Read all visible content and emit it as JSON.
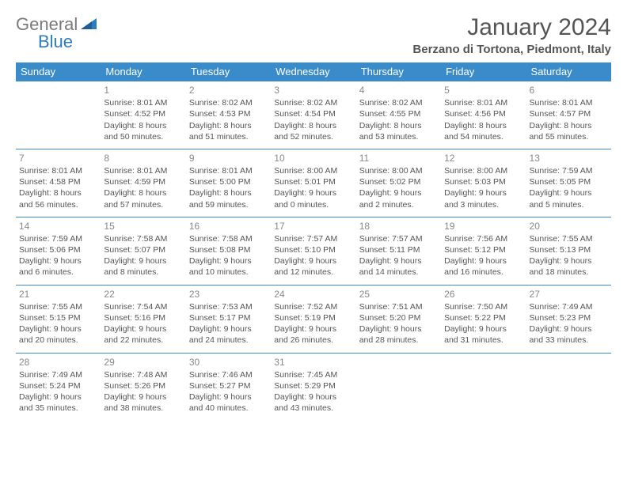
{
  "logo": {
    "text1": "General",
    "text2": "Blue"
  },
  "title": "January 2024",
  "location": "Berzano di Tortona, Piedmont, Italy",
  "colors": {
    "header_bg": "#3a8bc9",
    "header_fg": "#ffffff",
    "border": "#3a8bc9",
    "text": "#555555",
    "logo_gray": "#7a7a7a",
    "logo_blue": "#2e7cc0"
  },
  "day_headers": [
    "Sunday",
    "Monday",
    "Tuesday",
    "Wednesday",
    "Thursday",
    "Friday",
    "Saturday"
  ],
  "weeks": [
    [
      {
        "n": "",
        "sr": "",
        "ss": "",
        "d1": "",
        "d2": ""
      },
      {
        "n": "1",
        "sr": "Sunrise: 8:01 AM",
        "ss": "Sunset: 4:52 PM",
        "d1": "Daylight: 8 hours",
        "d2": "and 50 minutes."
      },
      {
        "n": "2",
        "sr": "Sunrise: 8:02 AM",
        "ss": "Sunset: 4:53 PM",
        "d1": "Daylight: 8 hours",
        "d2": "and 51 minutes."
      },
      {
        "n": "3",
        "sr": "Sunrise: 8:02 AM",
        "ss": "Sunset: 4:54 PM",
        "d1": "Daylight: 8 hours",
        "d2": "and 52 minutes."
      },
      {
        "n": "4",
        "sr": "Sunrise: 8:02 AM",
        "ss": "Sunset: 4:55 PM",
        "d1": "Daylight: 8 hours",
        "d2": "and 53 minutes."
      },
      {
        "n": "5",
        "sr": "Sunrise: 8:01 AM",
        "ss": "Sunset: 4:56 PM",
        "d1": "Daylight: 8 hours",
        "d2": "and 54 minutes."
      },
      {
        "n": "6",
        "sr": "Sunrise: 8:01 AM",
        "ss": "Sunset: 4:57 PM",
        "d1": "Daylight: 8 hours",
        "d2": "and 55 minutes."
      }
    ],
    [
      {
        "n": "7",
        "sr": "Sunrise: 8:01 AM",
        "ss": "Sunset: 4:58 PM",
        "d1": "Daylight: 8 hours",
        "d2": "and 56 minutes."
      },
      {
        "n": "8",
        "sr": "Sunrise: 8:01 AM",
        "ss": "Sunset: 4:59 PM",
        "d1": "Daylight: 8 hours",
        "d2": "and 57 minutes."
      },
      {
        "n": "9",
        "sr": "Sunrise: 8:01 AM",
        "ss": "Sunset: 5:00 PM",
        "d1": "Daylight: 8 hours",
        "d2": "and 59 minutes."
      },
      {
        "n": "10",
        "sr": "Sunrise: 8:00 AM",
        "ss": "Sunset: 5:01 PM",
        "d1": "Daylight: 9 hours",
        "d2": "and 0 minutes."
      },
      {
        "n": "11",
        "sr": "Sunrise: 8:00 AM",
        "ss": "Sunset: 5:02 PM",
        "d1": "Daylight: 9 hours",
        "d2": "and 2 minutes."
      },
      {
        "n": "12",
        "sr": "Sunrise: 8:00 AM",
        "ss": "Sunset: 5:03 PM",
        "d1": "Daylight: 9 hours",
        "d2": "and 3 minutes."
      },
      {
        "n": "13",
        "sr": "Sunrise: 7:59 AM",
        "ss": "Sunset: 5:05 PM",
        "d1": "Daylight: 9 hours",
        "d2": "and 5 minutes."
      }
    ],
    [
      {
        "n": "14",
        "sr": "Sunrise: 7:59 AM",
        "ss": "Sunset: 5:06 PM",
        "d1": "Daylight: 9 hours",
        "d2": "and 6 minutes."
      },
      {
        "n": "15",
        "sr": "Sunrise: 7:58 AM",
        "ss": "Sunset: 5:07 PM",
        "d1": "Daylight: 9 hours",
        "d2": "and 8 minutes."
      },
      {
        "n": "16",
        "sr": "Sunrise: 7:58 AM",
        "ss": "Sunset: 5:08 PM",
        "d1": "Daylight: 9 hours",
        "d2": "and 10 minutes."
      },
      {
        "n": "17",
        "sr": "Sunrise: 7:57 AM",
        "ss": "Sunset: 5:10 PM",
        "d1": "Daylight: 9 hours",
        "d2": "and 12 minutes."
      },
      {
        "n": "18",
        "sr": "Sunrise: 7:57 AM",
        "ss": "Sunset: 5:11 PM",
        "d1": "Daylight: 9 hours",
        "d2": "and 14 minutes."
      },
      {
        "n": "19",
        "sr": "Sunrise: 7:56 AM",
        "ss": "Sunset: 5:12 PM",
        "d1": "Daylight: 9 hours",
        "d2": "and 16 minutes."
      },
      {
        "n": "20",
        "sr": "Sunrise: 7:55 AM",
        "ss": "Sunset: 5:13 PM",
        "d1": "Daylight: 9 hours",
        "d2": "and 18 minutes."
      }
    ],
    [
      {
        "n": "21",
        "sr": "Sunrise: 7:55 AM",
        "ss": "Sunset: 5:15 PM",
        "d1": "Daylight: 9 hours",
        "d2": "and 20 minutes."
      },
      {
        "n": "22",
        "sr": "Sunrise: 7:54 AM",
        "ss": "Sunset: 5:16 PM",
        "d1": "Daylight: 9 hours",
        "d2": "and 22 minutes."
      },
      {
        "n": "23",
        "sr": "Sunrise: 7:53 AM",
        "ss": "Sunset: 5:17 PM",
        "d1": "Daylight: 9 hours",
        "d2": "and 24 minutes."
      },
      {
        "n": "24",
        "sr": "Sunrise: 7:52 AM",
        "ss": "Sunset: 5:19 PM",
        "d1": "Daylight: 9 hours",
        "d2": "and 26 minutes."
      },
      {
        "n": "25",
        "sr": "Sunrise: 7:51 AM",
        "ss": "Sunset: 5:20 PM",
        "d1": "Daylight: 9 hours",
        "d2": "and 28 minutes."
      },
      {
        "n": "26",
        "sr": "Sunrise: 7:50 AM",
        "ss": "Sunset: 5:22 PM",
        "d1": "Daylight: 9 hours",
        "d2": "and 31 minutes."
      },
      {
        "n": "27",
        "sr": "Sunrise: 7:49 AM",
        "ss": "Sunset: 5:23 PM",
        "d1": "Daylight: 9 hours",
        "d2": "and 33 minutes."
      }
    ],
    [
      {
        "n": "28",
        "sr": "Sunrise: 7:49 AM",
        "ss": "Sunset: 5:24 PM",
        "d1": "Daylight: 9 hours",
        "d2": "and 35 minutes."
      },
      {
        "n": "29",
        "sr": "Sunrise: 7:48 AM",
        "ss": "Sunset: 5:26 PM",
        "d1": "Daylight: 9 hours",
        "d2": "and 38 minutes."
      },
      {
        "n": "30",
        "sr": "Sunrise: 7:46 AM",
        "ss": "Sunset: 5:27 PM",
        "d1": "Daylight: 9 hours",
        "d2": "and 40 minutes."
      },
      {
        "n": "31",
        "sr": "Sunrise: 7:45 AM",
        "ss": "Sunset: 5:29 PM",
        "d1": "Daylight: 9 hours",
        "d2": "and 43 minutes."
      },
      {
        "n": "",
        "sr": "",
        "ss": "",
        "d1": "",
        "d2": ""
      },
      {
        "n": "",
        "sr": "",
        "ss": "",
        "d1": "",
        "d2": ""
      },
      {
        "n": "",
        "sr": "",
        "ss": "",
        "d1": "",
        "d2": ""
      }
    ]
  ]
}
